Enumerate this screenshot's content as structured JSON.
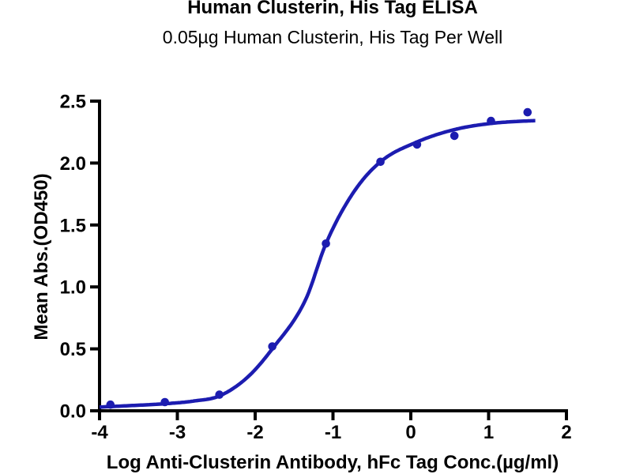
{
  "chart_data": {
    "type": "scatter",
    "subtype": "sigmoidal-dose-response-with-fit-curve",
    "title": "Human Clusterin, His Tag ELISA",
    "subtitle": "0.05µg Human Clusterin, His Tag Per Well",
    "xlabel": "Log Anti-Clusterin Antibody, hFc Tag Conc.(µg/ml)",
    "ylabel": "Mean Abs.(OD450)",
    "xlim": [
      -4,
      2
    ],
    "ylim": [
      0,
      2.5
    ],
    "x_ticks": [
      -4,
      -3,
      -2,
      -1,
      0,
      1,
      2
    ],
    "x_tick_labels": [
      "-4",
      "-3",
      "-2",
      "-1",
      "0",
      "1",
      "2"
    ],
    "y_ticks": [
      0,
      0.5,
      1,
      1.5,
      2,
      2.5
    ],
    "y_tick_labels": [
      "0.0",
      "0.5",
      "1.0",
      "1.5",
      "2.0",
      "2.5"
    ],
    "grid": false,
    "legend": false,
    "points": [
      {
        "x": -3.86,
        "y": 0.05
      },
      {
        "x": -3.16,
        "y": 0.07
      },
      {
        "x": -2.46,
        "y": 0.13
      },
      {
        "x": -1.78,
        "y": 0.52
      },
      {
        "x": -1.09,
        "y": 1.35
      },
      {
        "x": -0.39,
        "y": 2.01
      },
      {
        "x": 0.08,
        "y": 2.15
      },
      {
        "x": 0.56,
        "y": 2.22
      },
      {
        "x": 1.03,
        "y": 2.34
      },
      {
        "x": 1.5,
        "y": 2.41
      }
    ],
    "fit_curve": {
      "model": "4PL sigmoid (visual trace of fitted curve)",
      "trace": [
        [
          -4.0,
          0.03
        ],
        [
          -3.6,
          0.042
        ],
        [
          -3.16,
          0.057
        ],
        [
          -2.8,
          0.078
        ],
        [
          -2.46,
          0.12
        ],
        [
          -2.1,
          0.27
        ],
        [
          -1.78,
          0.5
        ],
        [
          -1.35,
          0.9
        ],
        [
          -1.09,
          1.35
        ],
        [
          -0.74,
          1.76
        ],
        [
          -0.39,
          2.01
        ],
        [
          0.08,
          2.17
        ],
        [
          0.56,
          2.27
        ],
        [
          1.03,
          2.32
        ],
        [
          1.5,
          2.34
        ],
        [
          1.6,
          2.342
        ]
      ]
    },
    "colors": {
      "series": "#1C1CB0",
      "axis": "#000000",
      "text": "#000000",
      "background": "#FFFFFF"
    }
  }
}
